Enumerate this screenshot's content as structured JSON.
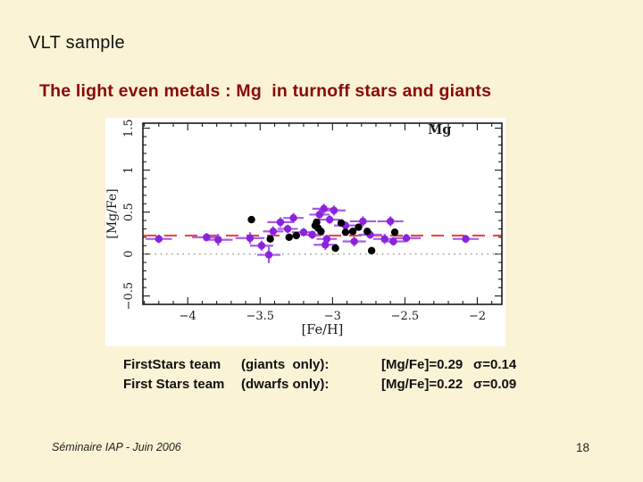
{
  "slide": {
    "title": "VLT sample",
    "subtitle": "The light even metals : Mg  in turnoff stars and giants",
    "footer": "Séminaire IAP -   Juin 2006",
    "page_number": "18"
  },
  "colors": {
    "background": "#FBF3D6",
    "subtitle_red": "#8B0909",
    "dwarf_purple": "#8B22DD",
    "dwarf_errorbar": "#A55CE8",
    "giant_black": "#000000",
    "mean_line_red": "#EE3B3B",
    "zero_line_gray": "#909090",
    "axis_black": "#1a1a1a"
  },
  "stats": {
    "rows": [
      {
        "team": "FirstStars team",
        "subset": "(giants  only):",
        "mean": "[Mg/Fe]=0.29",
        "sigma": "σ=0.14"
      },
      {
        "team": "First Stars team",
        "subset": "(dwarfs only):",
        "mean": "[Mg/Fe]=0.22",
        "sigma": "σ=0.09"
      }
    ]
  },
  "chart_data": {
    "type": "scatter",
    "annotation": "Mg",
    "annotation_pos": {
      "x": -2.26,
      "y": 1.43
    },
    "xlabel": "[Fe/H]",
    "ylabel": "[Mg/Fe]",
    "xlim": [
      -4.31,
      -1.83
    ],
    "ylim": [
      -0.6,
      1.56
    ],
    "x_major_ticks": [
      -4,
      -3.5,
      -3,
      -2.5,
      -2
    ],
    "y_major_ticks": [
      -0.5,
      0,
      0.5,
      1,
      1.5
    ],
    "minor_tick_step": 0.1,
    "grid": false,
    "legend": "none",
    "reference_lines": [
      {
        "y": 0.22,
        "style": "dashed",
        "color_key": "mean_line_red"
      },
      {
        "y": 0,
        "style": "dotted",
        "color_key": "zero_line_gray"
      }
    ],
    "series": [
      {
        "name": "turnoff dwarfs",
        "marker": "filled-circle",
        "color_key": "dwarf_purple",
        "errorbar_color_key": "dwarf_errorbar",
        "has_error_bars": true,
        "points": [
          [
            -4.2,
            0.18,
            0.09,
            0.05
          ],
          [
            -3.87,
            0.2,
            0.1,
            0.05
          ],
          [
            -3.79,
            0.17,
            0.1,
            0.07
          ],
          [
            -3.57,
            0.19,
            0.1,
            0.07
          ],
          [
            -3.49,
            0.1,
            0.08,
            0.06
          ],
          [
            -3.44,
            -0.01,
            0.08,
            0.1
          ],
          [
            -3.41,
            0.27,
            0.07,
            0.06
          ],
          [
            -3.36,
            0.38,
            0.09,
            0.06
          ],
          [
            -3.31,
            0.3,
            0.07,
            0.05
          ],
          [
            -3.27,
            0.43,
            0.07,
            0.06
          ],
          [
            -3.2,
            0.26,
            0.08,
            0.05
          ],
          [
            -3.14,
            0.23,
            0.08,
            0.05
          ],
          [
            -3.09,
            0.47,
            0.07,
            0.06
          ],
          [
            -3.06,
            0.54,
            0.08,
            0.06
          ],
          [
            -2.99,
            0.52,
            0.08,
            0.06
          ],
          [
            -3.02,
            0.41,
            0.07,
            0.05
          ],
          [
            -3.04,
            0.18,
            0.07,
            0.05
          ],
          [
            -3.05,
            0.11,
            0.08,
            0.06
          ],
          [
            -2.91,
            0.34,
            0.08,
            0.05
          ],
          [
            -2.85,
            0.15,
            0.08,
            0.06
          ],
          [
            -2.79,
            0.39,
            0.09,
            0.06
          ],
          [
            -2.74,
            0.23,
            0.08,
            0.05
          ],
          [
            -2.64,
            0.18,
            0.08,
            0.06
          ],
          [
            -2.6,
            0.39,
            0.09,
            0.06
          ],
          [
            -2.58,
            0.15,
            0.08,
            0.05
          ],
          [
            -2.49,
            0.19,
            0.1,
            0.05
          ],
          [
            -2.08,
            0.18,
            0.09,
            0.05
          ]
        ]
      },
      {
        "name": "giants",
        "marker": "filled-circle",
        "color_key": "giant_black",
        "has_error_bars": false,
        "points": [
          [
            -3.56,
            0.41
          ],
          [
            -3.43,
            0.18
          ],
          [
            -3.3,
            0.2
          ],
          [
            -3.25,
            0.22
          ],
          [
            -3.12,
            0.34
          ],
          [
            -3.11,
            0.38
          ],
          [
            -3.1,
            0.31
          ],
          [
            -3.08,
            0.27
          ],
          [
            -2.98,
            0.07
          ],
          [
            -2.94,
            0.37
          ],
          [
            -2.91,
            0.26
          ],
          [
            -2.86,
            0.27
          ],
          [
            -2.82,
            0.32
          ],
          [
            -2.76,
            0.27
          ],
          [
            -2.73,
            0.04
          ],
          [
            -2.57,
            0.26
          ]
        ]
      }
    ]
  }
}
